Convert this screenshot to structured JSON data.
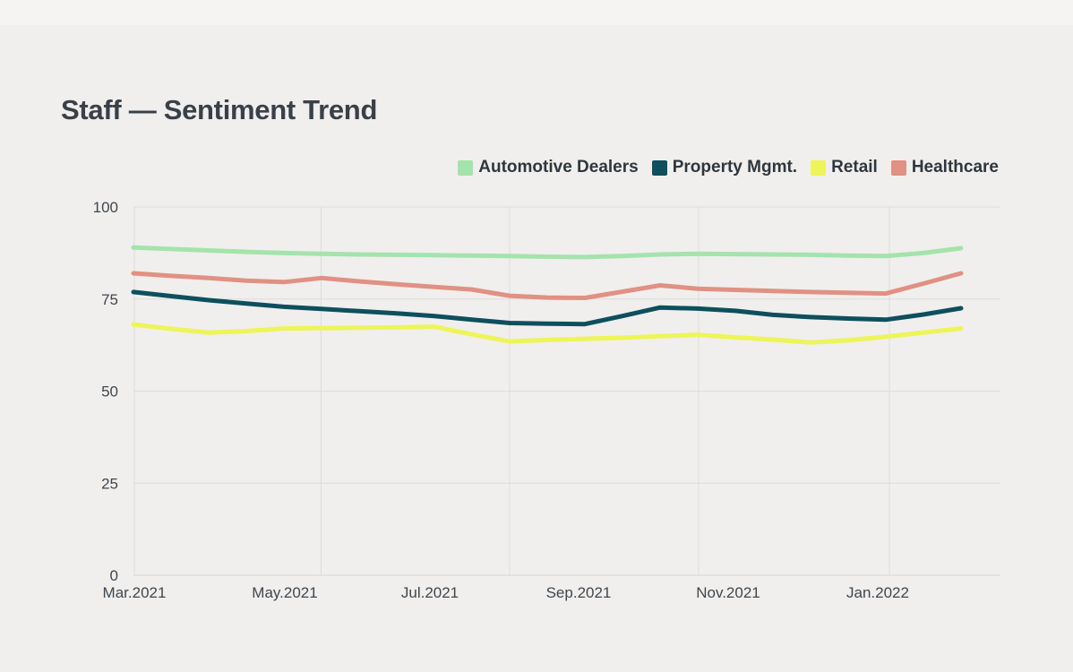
{
  "page": {
    "title": "Staff — Sentiment Trend"
  },
  "chart_data": {
    "type": "line",
    "title": "Staff — Sentiment Trend",
    "xlabel": "",
    "ylabel": "",
    "ylim": [
      0,
      100
    ],
    "y_ticks": [
      0,
      25,
      50,
      75,
      100
    ],
    "x_tick_labels": [
      "Mar.2021",
      "May.2021",
      "Jul.2021",
      "Sep.2021",
      "Nov.2021",
      "Jan.2022"
    ],
    "x_label_point_indices": [
      0,
      4,
      8,
      12,
      16,
      20
    ],
    "points_per_series": 23,
    "grid": "on",
    "legend_position": "top-right",
    "background_color": "#f0efed",
    "gridline_color": "#dddcda",
    "series": [
      {
        "name": "Automotive Dealers",
        "color": "#a5e3ac",
        "values": [
          89.0,
          88.6,
          88.2,
          87.8,
          87.5,
          87.3,
          87.1,
          87.0,
          86.9,
          86.8,
          86.7,
          86.5,
          86.4,
          86.7,
          87.1,
          87.3,
          87.2,
          87.1,
          87.0,
          86.8,
          86.7,
          87.5,
          88.8
        ]
      },
      {
        "name": "Property Mgmt.",
        "color": "#0e4f5e",
        "values": [
          76.9,
          75.8,
          74.7,
          73.8,
          72.9,
          72.3,
          71.7,
          71.1,
          70.4,
          69.4,
          68.5,
          68.3,
          68.2,
          70.4,
          72.7,
          72.4,
          71.8,
          70.7,
          70.1,
          69.7,
          69.4,
          70.8,
          72.5
        ]
      },
      {
        "name": "Retail",
        "color": "#edf558",
        "values": [
          68.1,
          66.9,
          65.9,
          66.3,
          67.0,
          67.1,
          67.2,
          67.3,
          67.5,
          65.4,
          63.5,
          63.9,
          64.2,
          64.5,
          64.9,
          65.3,
          64.6,
          64.0,
          63.2,
          63.8,
          64.8,
          65.9,
          67.0
        ]
      },
      {
        "name": "Healthcare",
        "color": "#e09183",
        "values": [
          82.0,
          81.3,
          80.7,
          80.0,
          79.6,
          80.7,
          79.8,
          79.0,
          78.3,
          77.6,
          75.9,
          75.4,
          75.3,
          77.0,
          78.7,
          77.8,
          77.5,
          77.2,
          76.9,
          76.7,
          76.5,
          79.2,
          82.0
        ]
      }
    ]
  }
}
